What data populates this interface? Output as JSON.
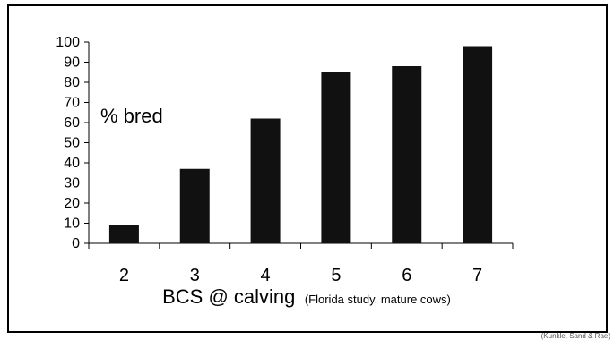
{
  "chart_data": {
    "type": "bar",
    "categories": [
      "2",
      "3",
      "4",
      "5",
      "6",
      "7"
    ],
    "values": [
      9,
      37,
      62,
      85,
      88,
      98
    ],
    "ylabel": "% bred",
    "xlabel": "BCS @ calving",
    "xlabel_note": "(Florida study, mature cows)",
    "ylim": [
      0,
      100
    ],
    "yticks": [
      0,
      10,
      20,
      30,
      40,
      50,
      60,
      70,
      80,
      90,
      100
    ],
    "grid": false,
    "bar_color": "#111111"
  },
  "credit": "(Kunkle, Sand & Rae)"
}
